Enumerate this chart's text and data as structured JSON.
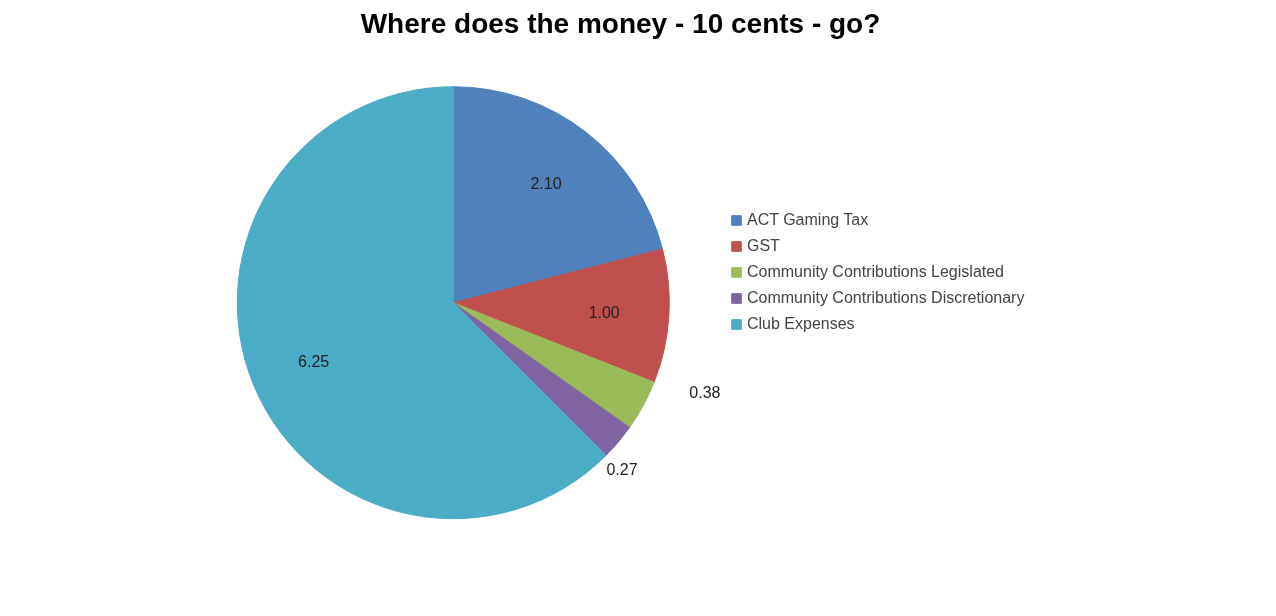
{
  "chart_data": {
    "type": "pie",
    "title": "Where does the money - 10 cents - go?",
    "categories": [
      "ACT Gaming Tax",
      "GST",
      "Community Contributions Legislated",
      "Community Contributions Discretionary",
      "Club Expenses"
    ],
    "values": [
      2.1,
      1.0,
      0.38,
      0.27,
      6.25
    ],
    "value_labels": [
      "2.10",
      "1.00",
      "0.38",
      "0.27",
      "6.25"
    ],
    "colors": [
      "#4f81bd",
      "#c0504d",
      "#9bbb59",
      "#8064a2",
      "#4bacc6"
    ],
    "legend": "right"
  }
}
